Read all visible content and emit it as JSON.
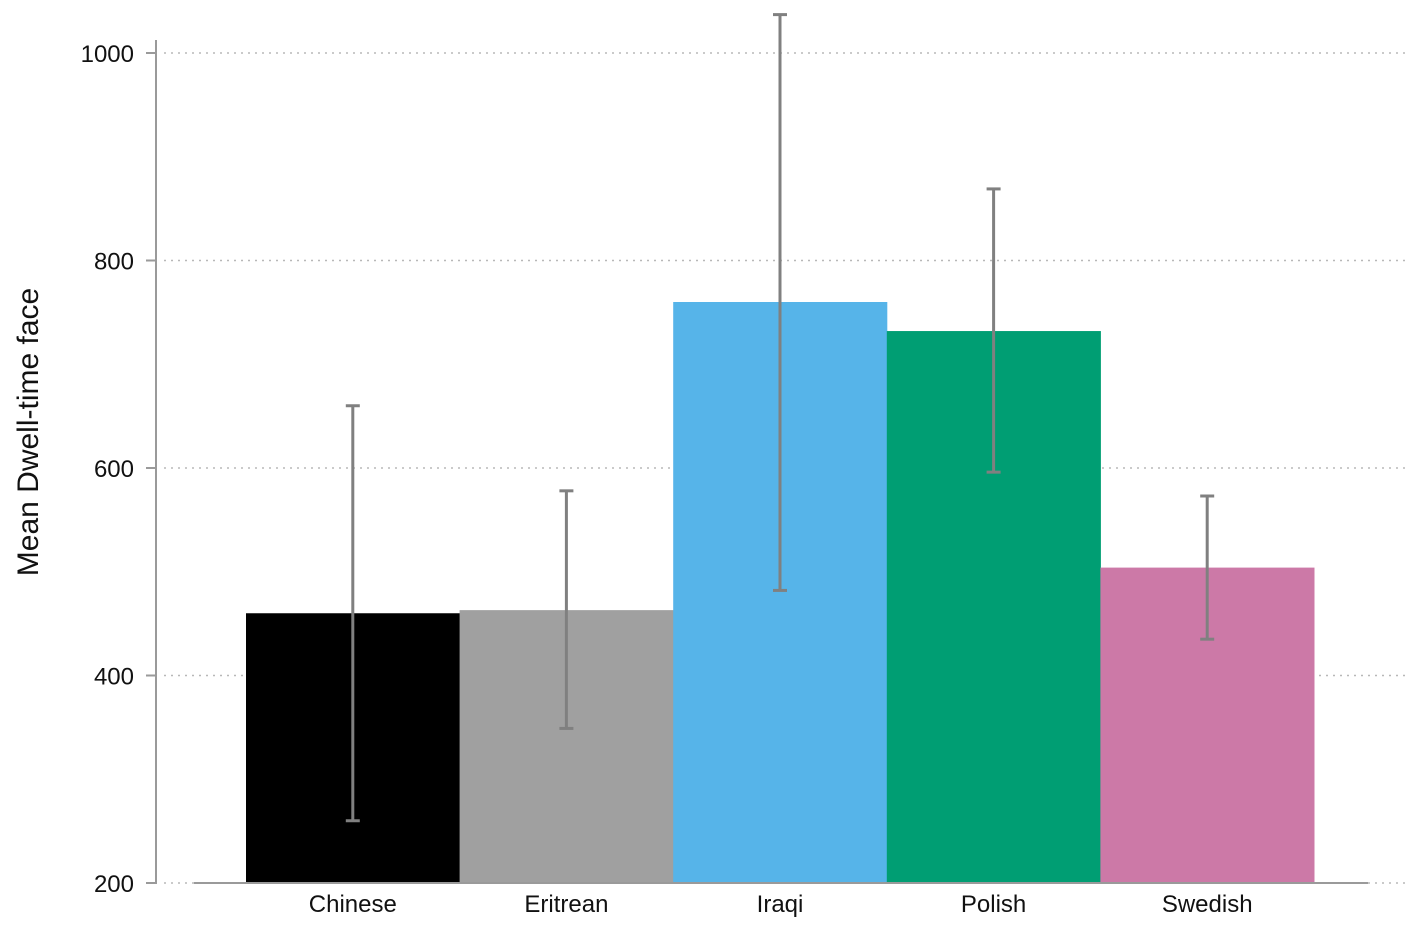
{
  "chart_data": {
    "type": "bar",
    "title": "",
    "xlabel": "",
    "ylabel": "Mean Dwell-time face",
    "categories": [
      "Chinese",
      "Eritrean",
      "Iraqi",
      "Polish",
      "Swedish"
    ],
    "values": [
      460,
      463,
      760,
      732,
      504
    ],
    "error_low": [
      260,
      349,
      482,
      596,
      435
    ],
    "error_high": [
      660,
      578,
      1037,
      869,
      573
    ],
    "colors": [
      "#000000",
      "#a0a0a0",
      "#56b4e9",
      "#009e73",
      "#cc79a7"
    ],
    "error_bar_color": "#808080",
    "ylim": [
      200,
      1000
    ],
    "yticks": [
      200,
      400,
      600,
      800,
      1000
    ],
    "ytick_labels": [
      "200",
      "400",
      "600",
      "800",
      "1000"
    ],
    "grid": true,
    "legend": "none"
  }
}
